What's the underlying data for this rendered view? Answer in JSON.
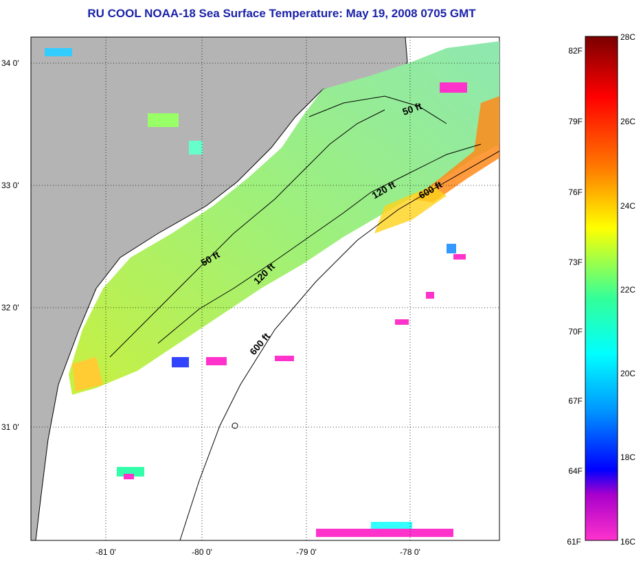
{
  "title": "RU COOL  NOAA-18  Sea Surface Temperature:  May 19, 2008 0705 GMT",
  "map": {
    "lat_labels": [
      "34 0'",
      "33 0'",
      "32 0'",
      "31 0'"
    ],
    "lon_labels": [
      "-81 0'",
      "-80 0'",
      "-79 0'",
      "-78 0'"
    ],
    "isobath_labels": [
      "50 ft",
      "120 ft",
      "600 ft",
      "50 ft",
      "120 ft",
      "600 ft"
    ],
    "colors": {
      "land": "#b4b4b4",
      "water_bg": "#ffffff",
      "grid": "#000000"
    }
  },
  "colorbar": {
    "fahrenheit": [
      "82F",
      "79F",
      "76F",
      "73F",
      "70F",
      "67F",
      "64F",
      "61F"
    ],
    "celsius": [
      "28C",
      "26C",
      "24C",
      "22C",
      "20C",
      "18C",
      "16C"
    ],
    "stops": [
      "#7a0000",
      "#ff0000",
      "#ff7a00",
      "#ffff00",
      "#33ff99",
      "#00ffff",
      "#0099ff",
      "#0000ff",
      "#aa00cc",
      "#ff33cc"
    ]
  }
}
